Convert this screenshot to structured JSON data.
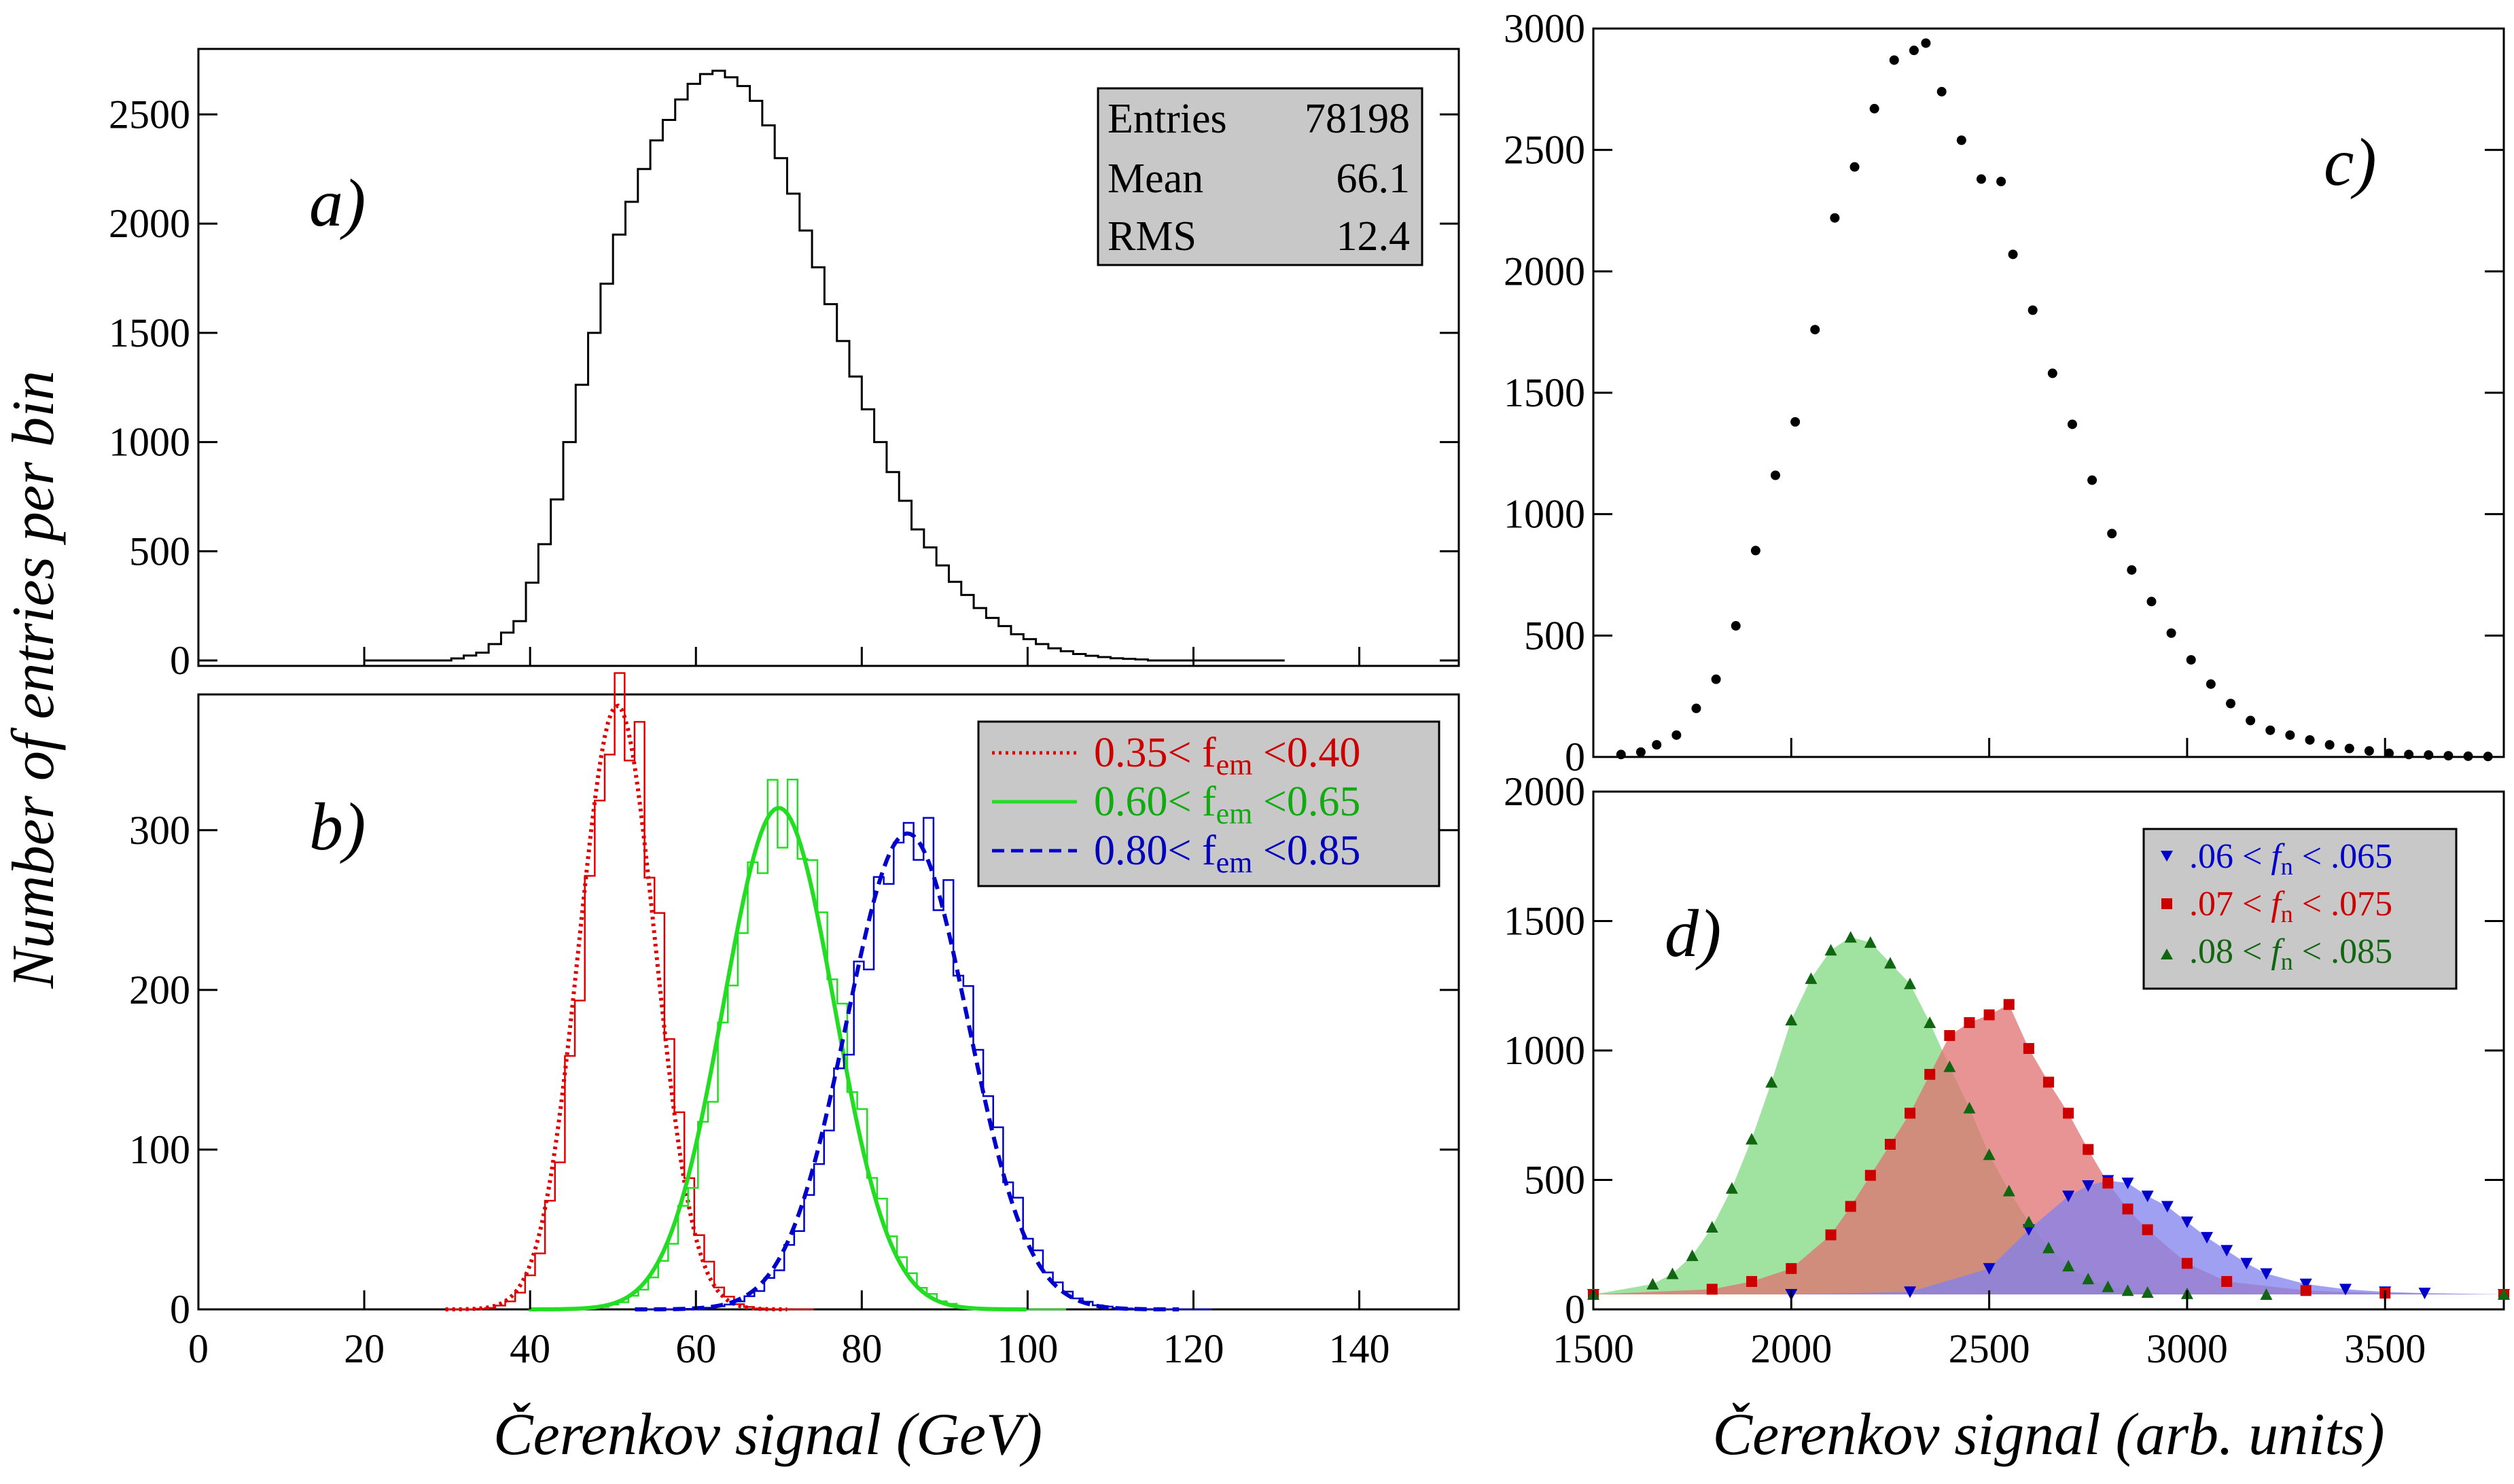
{
  "labels": {
    "y_axis_left": "Number of entries per bin",
    "x_axis_left": "Čerenkov signal (GeV)",
    "x_axis_right": "Čerenkov signal (arb. units)"
  },
  "stats_box": {
    "rows": [
      {
        "label": "Entries",
        "value": "78198"
      },
      {
        "label": "Mean",
        "value": "66.1"
      },
      {
        "label": "RMS",
        "value": "12.4"
      }
    ]
  },
  "chart_data": [
    {
      "panel": "a)",
      "type": "histogram",
      "xlim": [
        0,
        152
      ],
      "ylim": [
        0,
        2800
      ],
      "yticks": [
        0,
        500,
        1000,
        1500,
        2000,
        2500
      ],
      "x": [
        30,
        34,
        38,
        42,
        46,
        50,
        54,
        58,
        60,
        62,
        64,
        66,
        68,
        70,
        74,
        78,
        82,
        86,
        90,
        94,
        98,
        102,
        106,
        110,
        114
      ],
      "values": [
        5,
        40,
        180,
        650,
        1350,
        1950,
        2350,
        2600,
        2680,
        2700,
        2660,
        2600,
        2450,
        2250,
        1800,
        1350,
        950,
        600,
        380,
        220,
        120,
        60,
        25,
        10,
        3
      ],
      "color": "#000000"
    },
    {
      "panel": "b)",
      "type": "histogram+fit",
      "xlim": [
        0,
        152
      ],
      "ylim": [
        0,
        385
      ],
      "xticks": [
        0,
        20,
        40,
        60,
        80,
        100,
        120,
        140
      ],
      "yticks": [
        0,
        100,
        200,
        300
      ],
      "series": [
        {
          "name": "0.35< f_em <0.40",
          "color": "#dd0000",
          "mean": 50.5,
          "sigma": 4.6,
          "peak": 378,
          "style": "dotted"
        },
        {
          "name": "0.60< f_em <0.65",
          "color": "#22dd22",
          "mean": 70,
          "sigma": 6.7,
          "peak": 314,
          "style": "solid"
        },
        {
          "name": "0.80< f_em <0.85",
          "color": "#0000cc",
          "mean": 85.5,
          "sigma": 7.3,
          "peak": 298,
          "style": "dashed"
        }
      ],
      "legend": [
        {
          "prefix": "0.35",
          "sub": "em",
          "suffix": "0.40",
          "color": "#cc0000"
        },
        {
          "prefix": "0.60",
          "sub": "em",
          "suffix": "0.65",
          "color": "#11aa11"
        },
        {
          "prefix": "0.80",
          "sub": "em",
          "suffix": "0.85",
          "color": "#0000bb"
        }
      ]
    },
    {
      "panel": "c)",
      "type": "scatter",
      "xlim": [
        1500,
        3800
      ],
      "ylim": [
        0,
        3000
      ],
      "yticks": [
        0,
        500,
        1000,
        1500,
        2000,
        2500,
        3000
      ],
      "x": [
        1570,
        1620,
        1660,
        1710,
        1760,
        1810,
        1860,
        1910,
        1960,
        2010,
        2060,
        2110,
        2160,
        2210,
        2260,
        2310,
        2340,
        2380,
        2430,
        2480,
        2530,
        2560,
        2610,
        2660,
        2710,
        2760,
        2810,
        2860,
        2910,
        2960,
        3010,
        3060,
        3110,
        3160,
        3210,
        3260,
        3310,
        3360,
        3410,
        3460,
        3510,
        3560,
        3610,
        3660,
        3710,
        3760
      ],
      "y": [
        10,
        20,
        50,
        90,
        200,
        320,
        540,
        850,
        1160,
        1380,
        1760,
        2220,
        2430,
        2670,
        2870,
        2910,
        2940,
        2740,
        2540,
        2380,
        2370,
        2070,
        1840,
        1580,
        1370,
        1140,
        920,
        770,
        640,
        510,
        400,
        300,
        220,
        150,
        110,
        90,
        70,
        50,
        35,
        25,
        15,
        10,
        8,
        5,
        3,
        2
      ],
      "color": "#000000"
    },
    {
      "panel": "d)",
      "type": "area+scatter",
      "xlim": [
        1500,
        3800
      ],
      "ylim": [
        0,
        2000
      ],
      "xticks": [
        1500,
        2000,
        2500,
        3000,
        3500
      ],
      "yticks": [
        0,
        500,
        1000,
        1500,
        2000
      ],
      "series": [
        {
          "name": ".06 < f_n < .065",
          "color": "#0000cc",
          "fill": "#8080ee",
          "marker": "triangle-down",
          "x": [
            1500,
            2000,
            2300,
            2500,
            2600,
            2700,
            2750,
            2800,
            2850,
            2900,
            2950,
            3000,
            3050,
            3100,
            3150,
            3200,
            3300,
            3400,
            3500,
            3600,
            3800
          ],
          "y": [
            0,
            0,
            10,
            100,
            250,
            380,
            420,
            440,
            430,
            380,
            340,
            280,
            220,
            170,
            120,
            80,
            40,
            20,
            10,
            5,
            0
          ]
        },
        {
          "name": ".07 < f_n < .075",
          "color": "#cc0000",
          "fill": "#e07070",
          "marker": "square",
          "x": [
            1500,
            1800,
            1900,
            2000,
            2100,
            2150,
            2200,
            2250,
            2300,
            2350,
            2400,
            2450,
            2500,
            2550,
            2600,
            2650,
            2700,
            2750,
            2800,
            2850,
            2900,
            3000,
            3100,
            3300,
            3500,
            3800
          ],
          "y": [
            0,
            20,
            50,
            100,
            230,
            340,
            460,
            580,
            700,
            850,
            1000,
            1050,
            1080,
            1120,
            950,
            820,
            700,
            560,
            430,
            330,
            250,
            120,
            50,
            15,
            5,
            0
          ]
        },
        {
          "name": ".08 < f_n < .085",
          "color": "#116611",
          "fill": "#80d880",
          "marker": "triangle-up",
          "x": [
            1500,
            1650,
            1700,
            1750,
            1800,
            1850,
            1900,
            1950,
            2000,
            2050,
            2100,
            2150,
            2200,
            2250,
            2300,
            2350,
            2400,
            2450,
            2500,
            2550,
            2600,
            2650,
            2700,
            2750,
            2800,
            2850,
            2900,
            3000,
            3200,
            3800
          ],
          "y": [
            0,
            40,
            80,
            150,
            260,
            410,
            600,
            820,
            1060,
            1220,
            1330,
            1380,
            1360,
            1280,
            1200,
            1050,
            880,
            720,
            540,
            400,
            280,
            180,
            110,
            60,
            30,
            15,
            8,
            3,
            0,
            0
          ]
        }
      ]
    }
  ],
  "panel_labels": [
    "a)",
    "b)",
    "c)",
    "d)"
  ]
}
